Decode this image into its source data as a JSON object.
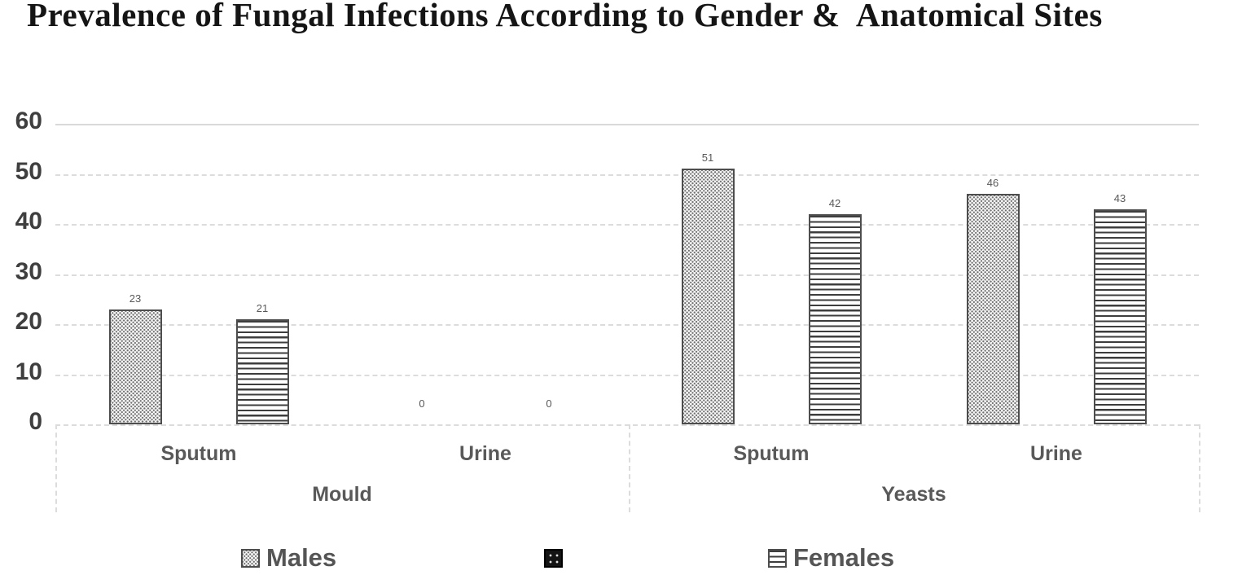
{
  "chart_data": {
    "type": "bar",
    "title": "Prevalence of Fungal Infections According to Gender &  Anatomical Sites",
    "xlabel": "",
    "ylabel": "",
    "ylim": [
      0,
      60
    ],
    "yticks": [
      0,
      10,
      20,
      30,
      40,
      50,
      60
    ],
    "grid": "horizontal-dashed",
    "legend_position": "bottom",
    "group_labels": [
      "Mould",
      "Yeasts"
    ],
    "categories": [
      {
        "group": "Mould",
        "label": "Sputum"
      },
      {
        "group": "Mould",
        "label": "Urine"
      },
      {
        "group": "Yeasts",
        "label": "Sputum"
      },
      {
        "group": "Yeasts",
        "label": "Urine"
      }
    ],
    "series": [
      {
        "name": "Males",
        "pattern": "dotted",
        "values": [
          23,
          0,
          51,
          46
        ]
      },
      {
        "name": "Females",
        "pattern": "horizontal-lines",
        "values": [
          21,
          0,
          42,
          43
        ]
      }
    ],
    "data_labels": [
      "23",
      "0",
      "51",
      "46",
      "21",
      "0",
      "42",
      "43"
    ],
    "legend_items": [
      {
        "label": "Males",
        "pattern": "dotted"
      },
      {
        "label": "",
        "pattern": "black-dotted"
      },
      {
        "label": "Females",
        "pattern": "horizontal-lines"
      }
    ],
    "colors": {
      "bar_border": "#4d4d4d",
      "pattern_ink": "#3d3d3d",
      "gridline": "#dcdcdc",
      "tick_text": "#3f3f3f",
      "category_text": "#595959",
      "title_text": "#151515"
    }
  }
}
